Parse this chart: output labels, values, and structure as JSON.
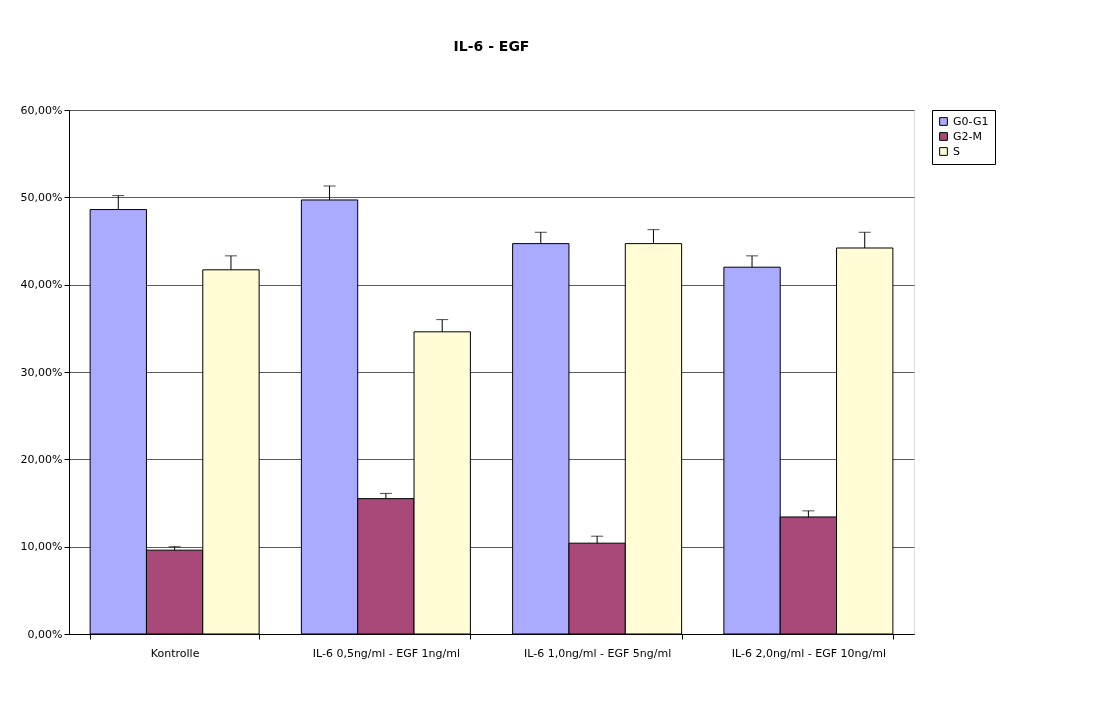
{
  "chart_data": {
    "type": "bar",
    "title": "IL-6 - EGF",
    "categories": [
      "Kontrolle",
      "IL-6 0,5ng/ml - EGF 1ng/ml",
      "IL-6 1,0ng/ml - EGF 5ng/ml",
      "IL-6 2,0ng/ml - EGF 10ng/ml"
    ],
    "series": [
      {
        "name": "G0-G1",
        "color": "#aaaaff",
        "values": [
          48.6,
          49.7,
          44.7,
          42.0
        ],
        "errors": [
          [
            48.6,
            50.2
          ],
          [
            49.7,
            51.3
          ],
          [
            44.7,
            46.0
          ],
          [
            42.0,
            43.3
          ]
        ]
      },
      {
        "name": "G2-M",
        "color": "#a8497a",
        "values": [
          9.6,
          15.5,
          10.4,
          13.4
        ],
        "errors": [
          [
            9.6,
            10.0
          ],
          [
            15.5,
            16.1
          ],
          [
            10.4,
            11.2
          ],
          [
            13.4,
            14.1
          ]
        ]
      },
      {
        "name": "S",
        "color": "#fffcd6",
        "values": [
          41.7,
          34.6,
          44.7,
          44.2
        ],
        "errors": [
          [
            41.7,
            43.3
          ],
          [
            34.6,
            36.0
          ],
          [
            44.7,
            46.3
          ],
          [
            44.2,
            46.0
          ]
        ]
      }
    ],
    "ylim": [
      0,
      60
    ],
    "yticks": [
      {
        "value": 0,
        "label": "0,00%"
      },
      {
        "value": 10,
        "label": "10,00%"
      },
      {
        "value": 20,
        "label": "20,00%"
      },
      {
        "value": 30,
        "label": "30,00%"
      },
      {
        "value": 40,
        "label": "40,00%"
      },
      {
        "value": 50,
        "label": "50,00%"
      },
      {
        "value": 60,
        "label": "60,00%"
      }
    ],
    "grid": "y",
    "legend": "right"
  }
}
